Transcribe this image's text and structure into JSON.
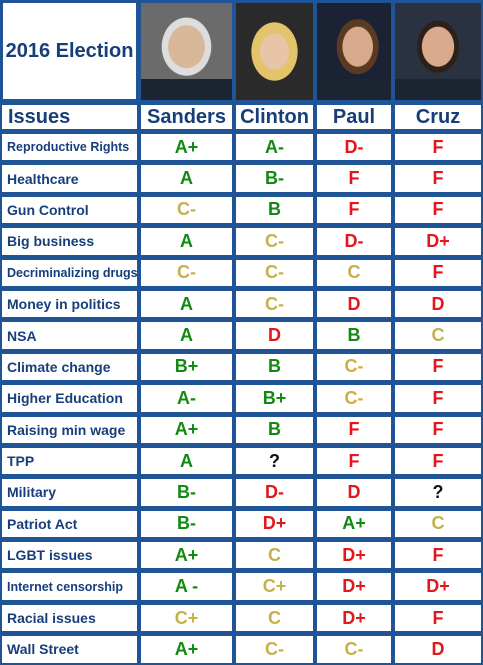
{
  "title": "2016 Election",
  "issues_header": "Issues",
  "candidates": [
    {
      "name": "Sanders",
      "photo_icon": "bernie-sanders-portrait"
    },
    {
      "name": "Clinton",
      "photo_icon": "hillary-clinton-portrait"
    },
    {
      "name": "Paul",
      "photo_icon": "rand-paul-portrait"
    },
    {
      "name": "Cruz",
      "photo_icon": "ted-cruz-portrait"
    }
  ],
  "colors": {
    "background": "#1f5596",
    "text_blue": "#173e7a",
    "green": "#128a12",
    "red": "#e3161b",
    "gold": "#c7b04a"
  },
  "rows": [
    {
      "issue": "Reproductive Rights",
      "grades": [
        [
          "A+",
          "green"
        ],
        [
          "A-",
          "green"
        ],
        [
          "D-",
          "red"
        ],
        [
          "F",
          "red"
        ]
      ]
    },
    {
      "issue": "Healthcare",
      "grades": [
        [
          "A",
          "green"
        ],
        [
          "B-",
          "green"
        ],
        [
          "F",
          "red"
        ],
        [
          "F",
          "red"
        ]
      ]
    },
    {
      "issue": "Gun Control",
      "grades": [
        [
          "C-",
          "gold"
        ],
        [
          "B",
          "green"
        ],
        [
          "F",
          "red"
        ],
        [
          "F",
          "red"
        ]
      ]
    },
    {
      "issue": "Big business",
      "grades": [
        [
          "A",
          "green"
        ],
        [
          "C-",
          "gold"
        ],
        [
          "D-",
          "red"
        ],
        [
          "D+",
          "red"
        ]
      ]
    },
    {
      "issue": "Decriminalizing drugs",
      "grades": [
        [
          "C-",
          "gold"
        ],
        [
          "C-",
          "gold"
        ],
        [
          "C",
          "gold"
        ],
        [
          "F",
          "red"
        ]
      ]
    },
    {
      "issue": "Money in politics",
      "grades": [
        [
          "A",
          "green"
        ],
        [
          "C-",
          "gold"
        ],
        [
          "D",
          "red"
        ],
        [
          "D",
          "red"
        ]
      ]
    },
    {
      "issue": "NSA",
      "grades": [
        [
          "A",
          "green"
        ],
        [
          "D",
          "red"
        ],
        [
          "B",
          "green"
        ],
        [
          "C",
          "gold"
        ]
      ]
    },
    {
      "issue": "Climate change",
      "grades": [
        [
          "B+",
          "green"
        ],
        [
          "B",
          "green"
        ],
        [
          "C-",
          "gold"
        ],
        [
          "F",
          "red"
        ]
      ]
    },
    {
      "issue": "Higher Education",
      "grades": [
        [
          "A-",
          "green"
        ],
        [
          "B+",
          "green"
        ],
        [
          "C-",
          "gold"
        ],
        [
          "F",
          "red"
        ]
      ]
    },
    {
      "issue": "Raising min wage",
      "grades": [
        [
          "A+",
          "green"
        ],
        [
          "B",
          "green"
        ],
        [
          "F",
          "red"
        ],
        [
          "F",
          "red"
        ]
      ]
    },
    {
      "issue": "TPP",
      "grades": [
        [
          "A",
          "green"
        ],
        [
          "?",
          "black"
        ],
        [
          "F",
          "red"
        ],
        [
          "F",
          "red"
        ]
      ]
    },
    {
      "issue": "Military",
      "grades": [
        [
          "B-",
          "green"
        ],
        [
          "D-",
          "red"
        ],
        [
          "D",
          "red"
        ],
        [
          "?",
          "black"
        ]
      ]
    },
    {
      "issue": "Patriot Act",
      "grades": [
        [
          "B-",
          "green"
        ],
        [
          "D+",
          "red"
        ],
        [
          "A+",
          "green"
        ],
        [
          "C",
          "gold"
        ]
      ]
    },
    {
      "issue": "LGBT issues",
      "grades": [
        [
          "A+",
          "green"
        ],
        [
          "C",
          "gold"
        ],
        [
          "D+",
          "red"
        ],
        [
          "F",
          "red"
        ]
      ]
    },
    {
      "issue": "Internet censorship",
      "grades": [
        [
          "A -",
          "green"
        ],
        [
          "C+",
          "gold"
        ],
        [
          "D+",
          "red"
        ],
        [
          "D+",
          "red"
        ]
      ]
    },
    {
      "issue": "Racial issues",
      "grades": [
        [
          "C+",
          "gold"
        ],
        [
          "C",
          "gold"
        ],
        [
          "D+",
          "red"
        ],
        [
          "F",
          "red"
        ]
      ]
    },
    {
      "issue": "Wall Street",
      "grades": [
        [
          "A+",
          "green"
        ],
        [
          "C-",
          "gold"
        ],
        [
          "C-",
          "gold"
        ],
        [
          "D",
          "red"
        ]
      ]
    }
  ]
}
